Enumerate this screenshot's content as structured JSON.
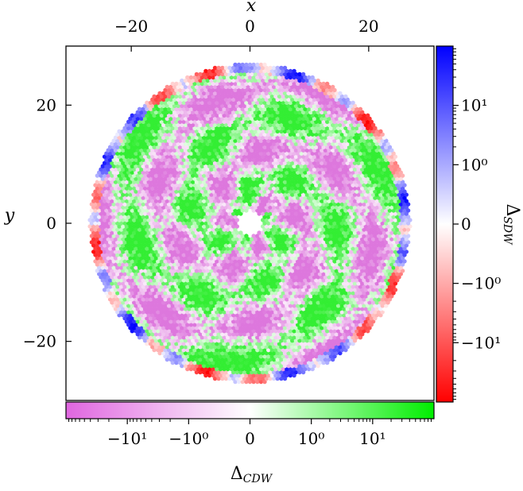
{
  "chart_data": {
    "type": "scatter",
    "description_free": true,
    "xlabel": "x",
    "ylabel": "y",
    "xlim": [
      -31,
      31
    ],
    "ylim": [
      -30,
      30
    ],
    "x_ticks": [
      {
        "value": -20,
        "label": "−20"
      },
      {
        "value": 0,
        "label": "0"
      },
      {
        "value": 20,
        "label": "20"
      }
    ],
    "y_ticks": [
      {
        "value": 20,
        "label": "20"
      },
      {
        "value": 0,
        "label": "0"
      },
      {
        "value": -20,
        "label": "−20"
      }
    ],
    "domain": {
      "shape": "disk",
      "outer_radius": 27,
      "inner_radius": 2.2,
      "edge_band": 1.6
    },
    "colorbar_sdw": {
      "label_main": "Δ",
      "label_sub": "SDW",
      "scale": "symlog",
      "positive_color": "#0000ff",
      "negative_color": "#ff0000",
      "zero_color": "#ffffff",
      "ticks": [
        {
          "value": 10,
          "label": "10¹"
        },
        {
          "value": 1,
          "label": "10⁰"
        },
        {
          "value": 0,
          "label": "0"
        },
        {
          "value": -1,
          "label": "−10⁰"
        },
        {
          "value": -10,
          "label": "−10¹"
        }
      ]
    },
    "colorbar_cdw": {
      "label_main": "Δ",
      "label_sub": "CDW",
      "scale": "symlog",
      "positive_color": "#00ff00",
      "negative_color": "#ee82ee",
      "zero_color": "#ffffff",
      "ticks": [
        {
          "value": -10,
          "label": "−10¹"
        },
        {
          "value": -1,
          "label": "−10⁰"
        },
        {
          "value": 0,
          "label": "0"
        },
        {
          "value": 1,
          "label": "10⁰"
        },
        {
          "value": 10,
          "label": "10¹"
        }
      ]
    }
  }
}
